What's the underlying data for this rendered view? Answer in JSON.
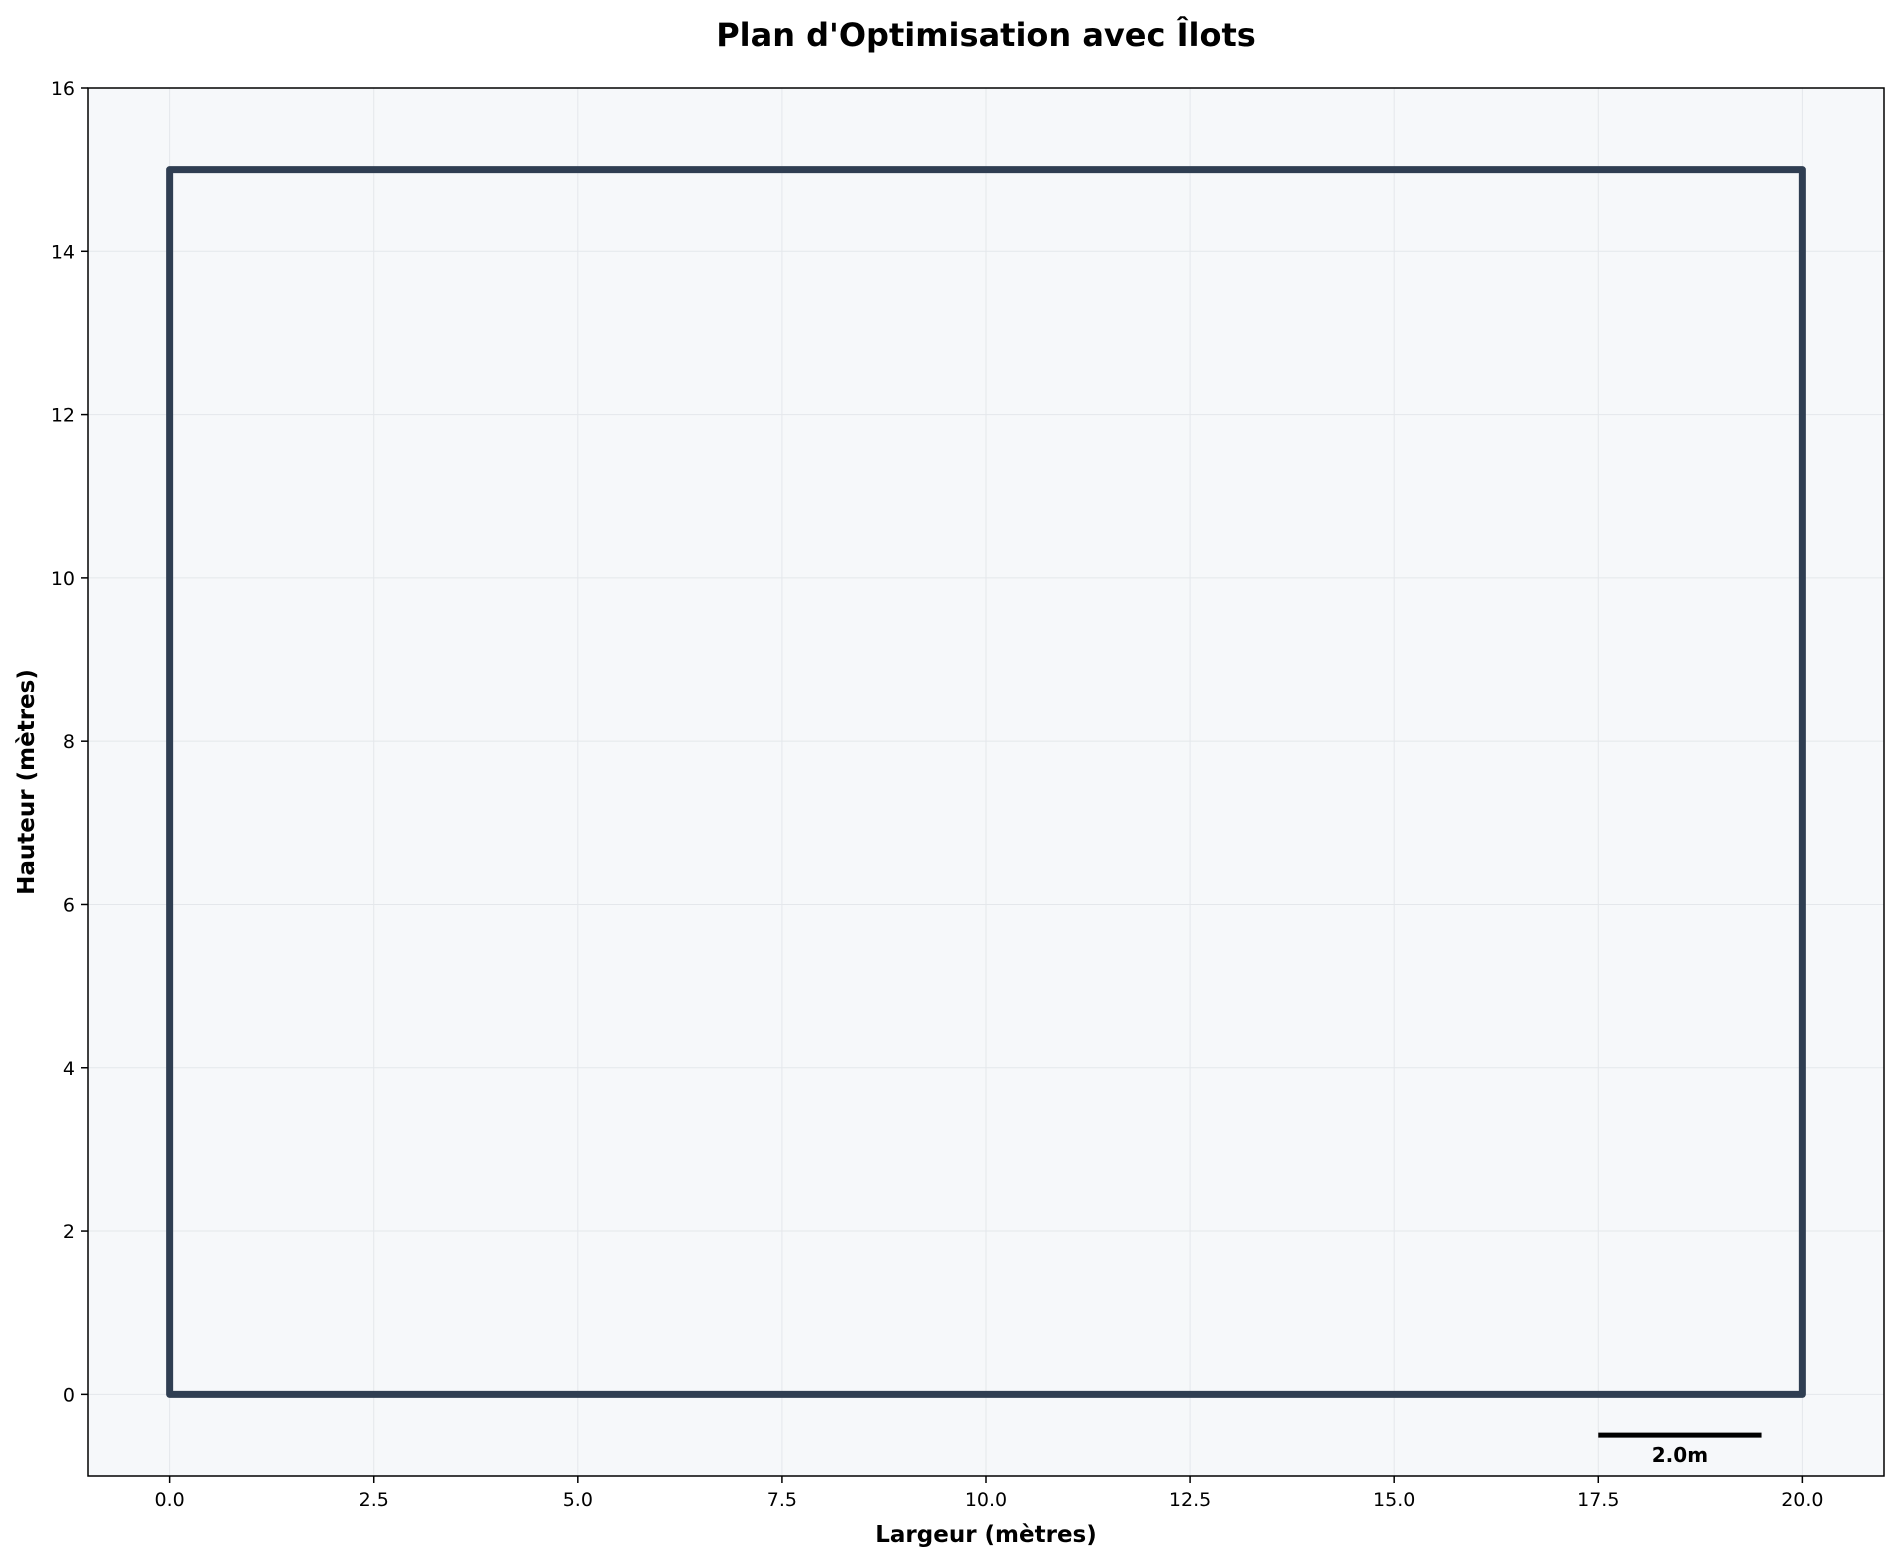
{
  "chart_data": {
    "type": "line",
    "title": "Plan d'Optimisation avec Îlots",
    "xlabel": "Largeur (mètres)",
    "ylabel": "Hauteur (mètres)",
    "xlim": [
      -1,
      21
    ],
    "ylim": [
      -1,
      16
    ],
    "xticks": [
      0.0,
      2.5,
      5.0,
      7.5,
      10.0,
      12.5,
      15.0,
      17.5,
      20.0
    ],
    "xtick_labels": [
      "0.0",
      "2.5",
      "5.0",
      "7.5",
      "10.0",
      "12.5",
      "15.0",
      "17.5",
      "20.0"
    ],
    "yticks": [
      0,
      2,
      4,
      6,
      8,
      10,
      12,
      14,
      16
    ],
    "ytick_labels": [
      "0",
      "2",
      "4",
      "6",
      "8",
      "10",
      "12",
      "14",
      "16"
    ],
    "grid": true,
    "series": [
      {
        "x": [
          0,
          20,
          20,
          0,
          0
        ],
        "y": [
          0,
          0,
          15,
          15,
          0
        ],
        "color": "#2f3e52"
      }
    ],
    "scale_bar": {
      "x": [
        17.5,
        19.5
      ],
      "y": -0.5,
      "label": "2.0m",
      "color": "#000000"
    },
    "background_color": "#f6f8fa",
    "grid_color": "#e4e7eb"
  }
}
